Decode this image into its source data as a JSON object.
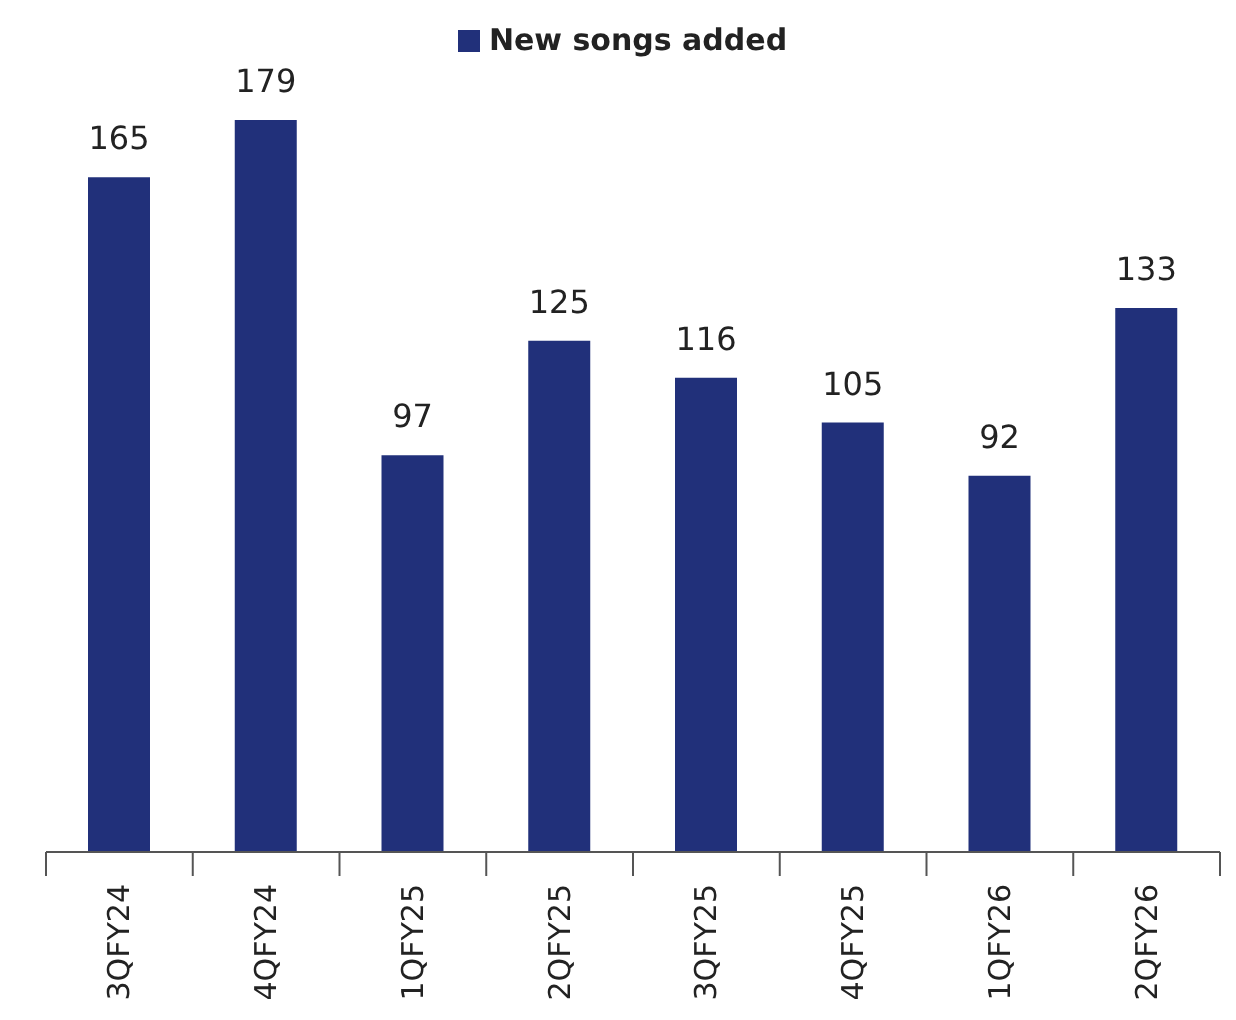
{
  "chart_data": {
    "type": "bar",
    "categories": [
      "3QFY24",
      "4QFY24",
      "1QFY25",
      "2QFY25",
      "3QFY25",
      "4QFY25",
      "1QFY26",
      "2QFY26"
    ],
    "series": [
      {
        "name": "New songs added",
        "color": "#21307a",
        "values": [
          165,
          179,
          97,
          125,
          116,
          105,
          92,
          133
        ]
      }
    ],
    "data_labels": true,
    "legend": "top",
    "grid": false
  }
}
